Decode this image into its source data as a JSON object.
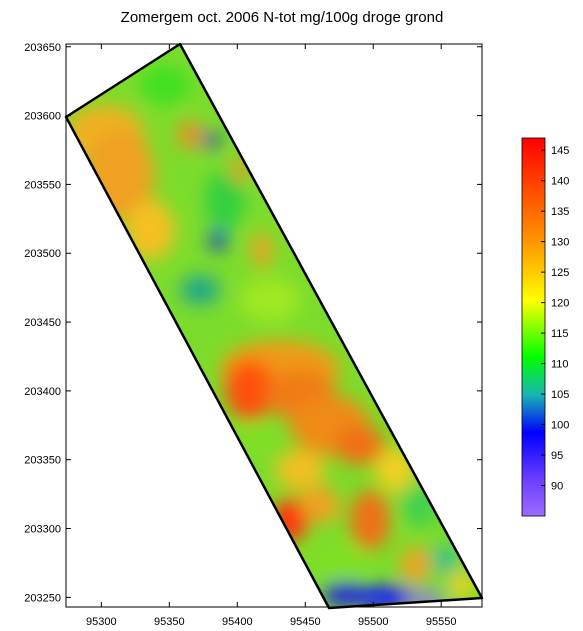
{
  "title": "Zomergem oct. 2006  N-tot mg/100g droge grond",
  "map": {
    "x_ticks": [
      "95300",
      "95350",
      "95400",
      "95450",
      "95500",
      "95550"
    ],
    "y_ticks": [
      "203650",
      "203600",
      "203550",
      "203500",
      "203450",
      "203400",
      "203350",
      "203300",
      "203250"
    ],
    "field_boundary": [
      [
        95358,
        203652
      ],
      [
        95274,
        203599
      ],
      [
        95467,
        203243
      ],
      [
        95580,
        203249
      ]
    ]
  },
  "legend": {
    "ticks": [
      "145",
      "140",
      "135",
      "130",
      "125",
      "120",
      "115",
      "110",
      "105",
      "100",
      "95",
      "90"
    ],
    "range": [
      85,
      147
    ],
    "colors": [
      "#9b6cff",
      "#0000ff",
      "#18b4b4",
      "#00ff00",
      "#ffff00",
      "#ff8c00",
      "#ff0000"
    ]
  }
}
